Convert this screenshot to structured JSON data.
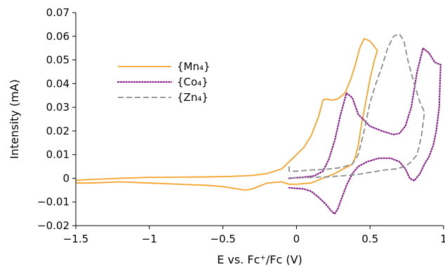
{
  "chart_data": {
    "type": "line",
    "title": "",
    "xlabel": "E vs. Fc⁺/Fc (V)",
    "ylabel": "Intensity (mA)",
    "xlim": [
      -1.5,
      1.0
    ],
    "ylim": [
      -0.02,
      0.07
    ],
    "x_ticks": [
      -1.5,
      -1.0,
      -0.5,
      0,
      0.5,
      1.0
    ],
    "x_tick_labels": [
      "−1.5",
      "−1",
      "−0.5",
      "0",
      "0.5",
      "1"
    ],
    "y_ticks": [
      -0.02,
      -0.01,
      0,
      0.01,
      0.02,
      0.03,
      0.04,
      0.05,
      0.06,
      0.07
    ],
    "y_tick_labels": [
      "−0.02",
      "−0.01",
      "0",
      "0.01",
      "0.02",
      "0.03",
      "0.04",
      "0.05",
      "0.06",
      "0.07"
    ],
    "grid": false,
    "legend_position": "upper-left",
    "series": [
      {
        "name": "{Mn₄}",
        "color": "#f5a32a",
        "dash": "solid",
        "x": [
          -1.55,
          -1.4,
          -1.2,
          -1.0,
          -0.8,
          -0.6,
          -0.45,
          -0.3,
          -0.2,
          -0.1,
          -0.05,
          0.0,
          0.05,
          0.1,
          0.15,
          0.18,
          0.2,
          0.24,
          0.28,
          0.33,
          0.37,
          0.4,
          0.43,
          0.46,
          0.5,
          0.55,
          0.55,
          0.53,
          0.5,
          0.47,
          0.44,
          0.42,
          0.4,
          0.38,
          0.35,
          0.32,
          0.29,
          0.26,
          0.22,
          0.18,
          0.1,
          0.0,
          -0.05,
          -0.1,
          -0.2,
          -0.3,
          -0.35,
          -0.4,
          -0.5,
          -0.6,
          -0.8,
          -1.0,
          -1.2,
          -1.4,
          -1.55
        ],
        "y": [
          -0.001,
          -0.0005,
          0.0,
          0.0004,
          0.0005,
          0.0006,
          0.0008,
          0.0012,
          0.002,
          0.004,
          0.007,
          0.01,
          0.013,
          0.018,
          0.026,
          0.033,
          0.0335,
          0.033,
          0.0335,
          0.036,
          0.042,
          0.048,
          0.055,
          0.059,
          0.058,
          0.054,
          0.054,
          0.05,
          0.042,
          0.032,
          0.022,
          0.014,
          0.009,
          0.006,
          0.005,
          0.004,
          0.003,
          0.002,
          0.001,
          0.0,
          -0.002,
          -0.0025,
          -0.0025,
          -0.0015,
          -0.002,
          -0.0045,
          -0.005,
          -0.0045,
          -0.0035,
          -0.003,
          -0.0025,
          -0.002,
          -0.0015,
          -0.002,
          -0.002
        ]
      },
      {
        "name": "{Co₄}",
        "color": "#8b1e8b",
        "dash": "dotted",
        "x": [
          -0.05,
          0.05,
          0.12,
          0.18,
          0.22,
          0.26,
          0.3,
          0.34,
          0.38,
          0.42,
          0.5,
          0.58,
          0.66,
          0.7,
          0.74,
          0.78,
          0.82,
          0.86,
          0.9,
          0.94,
          0.98,
          0.97,
          0.95,
          0.93,
          0.9,
          0.87,
          0.84,
          0.8,
          0.77,
          0.74,
          0.7,
          0.64,
          0.56,
          0.48,
          0.42,
          0.38,
          0.34,
          0.31,
          0.28,
          0.26,
          0.24,
          0.2,
          0.15,
          0.1,
          0.05,
          -0.05
        ],
        "y": [
          0.0,
          0.0005,
          0.001,
          0.003,
          0.008,
          0.016,
          0.027,
          0.036,
          0.034,
          0.027,
          0.022,
          0.02,
          0.0185,
          0.019,
          0.022,
          0.03,
          0.045,
          0.055,
          0.053,
          0.049,
          0.048,
          0.03,
          0.02,
          0.014,
          0.009,
          0.006,
          0.002,
          -0.001,
          0.0,
          0.004,
          0.007,
          0.0085,
          0.0085,
          0.007,
          0.005,
          0.002,
          -0.003,
          -0.008,
          -0.013,
          -0.015,
          -0.014,
          -0.011,
          -0.008,
          -0.0055,
          -0.0045,
          -0.004
        ]
      },
      {
        "name": "{Zn₄}",
        "color": "#8c8c8c",
        "dash": "dashed",
        "x": [
          -0.05,
          -0.05,
          0.0,
          0.1,
          0.2,
          0.3,
          0.38,
          0.42,
          0.46,
          0.5,
          0.54,
          0.58,
          0.62,
          0.66,
          0.7,
          0.73,
          0.76,
          0.8,
          0.84,
          0.87,
          0.85,
          0.82,
          0.78,
          0.74,
          0.68,
          0.6,
          0.5,
          0.4,
          0.3,
          0.2,
          0.1,
          0.0,
          -0.05
        ],
        "y": [
          0.005,
          0.003,
          0.003,
          0.0035,
          0.0038,
          0.0045,
          0.006,
          0.01,
          0.02,
          0.032,
          0.04,
          0.047,
          0.055,
          0.06,
          0.061,
          0.058,
          0.049,
          0.04,
          0.032,
          0.028,
          0.018,
          0.01,
          0.007,
          0.005,
          0.004,
          0.0035,
          0.0025,
          0.0015,
          0.001,
          0.0006,
          0.0004,
          0.0002,
          0.0002
        ]
      }
    ]
  }
}
